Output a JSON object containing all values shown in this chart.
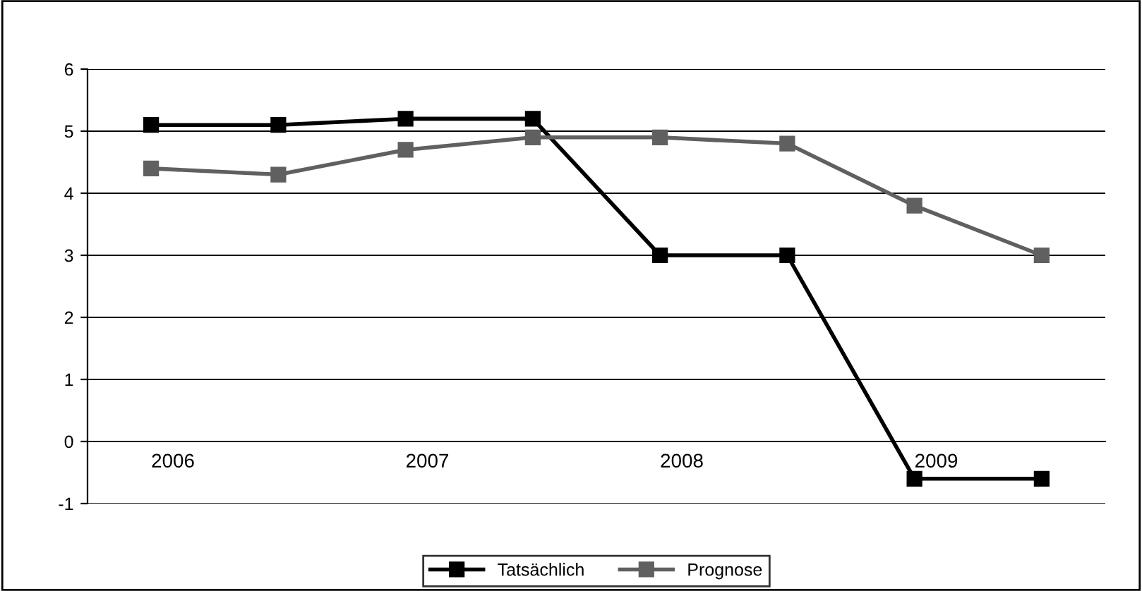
{
  "chart_data": {
    "type": "line",
    "categories": [
      "2006",
      null,
      "2007",
      null,
      "2008",
      null,
      "2009",
      null
    ],
    "series": [
      {
        "name": "Tatsächlich",
        "color": "#000000",
        "values": [
          5.1,
          5.1,
          5.2,
          5.2,
          3.0,
          3.0,
          -0.6,
          -0.6
        ]
      },
      {
        "name": "Prognose",
        "color": "#606060",
        "values": [
          4.4,
          4.3,
          4.7,
          4.9,
          4.9,
          4.8,
          3.8,
          3.0
        ]
      }
    ],
    "ylim": [
      -1,
      6
    ],
    "yticks": [
      -1,
      0,
      1,
      2,
      3,
      4,
      5,
      6
    ],
    "grid": "y",
    "legend": "bottom",
    "marker": "square",
    "line_style": "solid"
  }
}
